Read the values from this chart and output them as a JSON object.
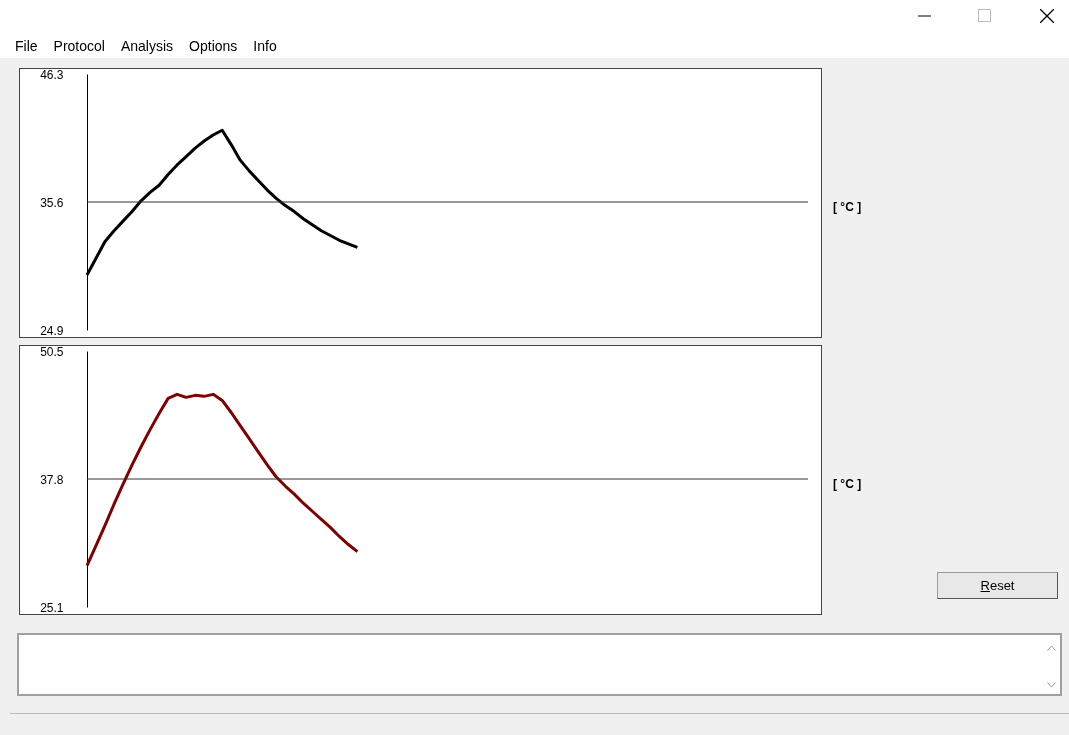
{
  "chart_data": [
    {
      "type": "line",
      "ylabel": "[ °C ]",
      "color": "#000000",
      "categories": [
        null,
        null,
        null,
        null,
        null,
        null,
        null,
        null,
        null,
        null,
        null,
        null,
        null,
        null,
        null,
        null,
        null,
        null,
        null,
        null,
        null,
        null,
        null,
        null,
        null,
        null,
        null,
        null,
        null,
        null,
        null,
        null,
        null,
        null,
        null,
        null,
        null,
        null,
        null,
        null,
        null,
        null,
        null,
        null,
        null,
        null,
        null,
        null,
        null,
        null,
        null,
        null,
        null,
        null,
        null,
        null,
        null,
        null,
        null,
        null,
        null,
        null,
        null,
        null,
        null,
        null,
        null,
        null,
        null,
        null,
        null,
        null,
        null,
        null,
        null,
        null,
        null,
        null,
        null,
        null,
        null
      ],
      "values": [
        29.5,
        30.9,
        32.3,
        33.2,
        34.0,
        34.8,
        35.7,
        36.4,
        37.0,
        37.9,
        38.7,
        39.4,
        40.1,
        40.7,
        41.2,
        41.6,
        40.4,
        39.1,
        38.2,
        37.4,
        36.6,
        35.9,
        35.3,
        34.8,
        34.2,
        33.7,
        33.2,
        32.8,
        32.4,
        32.1,
        31.8,
        null,
        null,
        null,
        null,
        null,
        null,
        null,
        null,
        null,
        null,
        null,
        null,
        null,
        null,
        null,
        null,
        null,
        null,
        null,
        null,
        null,
        null,
        null,
        null,
        null,
        null,
        null,
        null,
        null,
        null,
        null,
        null,
        null,
        null,
        null,
        null,
        null,
        null,
        null,
        null,
        null,
        null,
        null,
        null,
        null,
        null,
        null,
        null,
        null,
        null
      ],
      "ylim": [
        24.9,
        46.3
      ],
      "yticks": [
        24.9,
        35.6,
        46.3
      ],
      "tick_labels": "y",
      "ref_lines": [
        {
          "axis": "y",
          "value": 35.6,
          "color": "#333333"
        }
      ]
    },
    {
      "type": "line",
      "ylabel": "[ °C ]",
      "color": "#800000",
      "categories": [
        null,
        null,
        null,
        null,
        null,
        null,
        null,
        null,
        null,
        null,
        null,
        null,
        null,
        null,
        null,
        null,
        null,
        null,
        null,
        null,
        null,
        null,
        null,
        null,
        null,
        null,
        null,
        null,
        null,
        null,
        null,
        null,
        null,
        null,
        null,
        null,
        null,
        null,
        null,
        null,
        null,
        null,
        null,
        null,
        null,
        null,
        null,
        null,
        null,
        null,
        null,
        null,
        null,
        null,
        null,
        null,
        null,
        null,
        null,
        null,
        null,
        null,
        null,
        null,
        null,
        null,
        null,
        null,
        null,
        null,
        null,
        null,
        null,
        null,
        null,
        null,
        null,
        null,
        null,
        null,
        null
      ],
      "values": [
        29.2,
        31.2,
        33.2,
        35.3,
        37.3,
        39.2,
        41.0,
        42.7,
        44.3,
        45.8,
        46.2,
        45.9,
        46.1,
        46.0,
        46.2,
        45.6,
        44.4,
        43.1,
        41.8,
        40.5,
        39.2,
        38.0,
        37.1,
        36.3,
        35.4,
        34.6,
        33.8,
        33.0,
        32.1,
        31.3,
        30.6,
        null,
        null,
        null,
        null,
        null,
        null,
        null,
        null,
        null,
        null,
        null,
        null,
        null,
        null,
        null,
        null,
        null,
        null,
        null,
        null,
        null,
        null,
        null,
        null,
        null,
        null,
        null,
        null,
        null,
        null,
        null,
        null,
        null,
        null,
        null,
        null,
        null,
        null,
        null,
        null,
        null,
        null,
        null,
        null,
        null,
        null,
        null,
        null,
        null,
        null
      ],
      "ylim": [
        25.1,
        50.5
      ],
      "yticks": [
        25.1,
        37.8,
        50.5
      ],
      "tick_labels": "y",
      "ref_lines": [
        {
          "axis": "y",
          "value": 37.8,
          "color": "#333333"
        }
      ]
    },
    {
      "type": "other",
      "annotations": [
        "File",
        "Protocol",
        "Analysis",
        "Options",
        "Info"
      ]
    },
    {
      "type": "other",
      "annotations": [
        "Reset"
      ]
    }
  ]
}
